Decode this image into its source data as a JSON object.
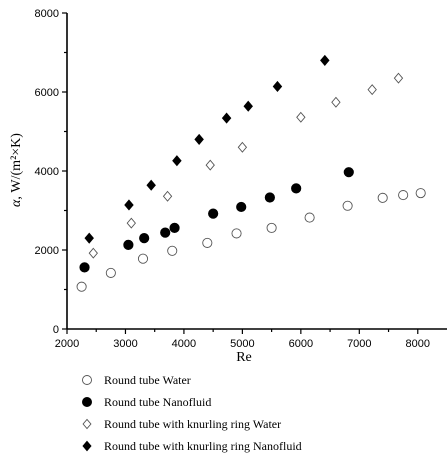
{
  "chart_data": {
    "type": "scatter",
    "xlabel": "Re",
    "ylabel_symbol": "α",
    "ylabel_unit": ", W/(m²×K)",
    "xlim": [
      2000,
      8500
    ],
    "ylim": [
      0,
      8000
    ],
    "xticks": [
      2000,
      3000,
      4000,
      5000,
      6000,
      7000,
      8000
    ],
    "yticks": [
      0,
      2000,
      4000,
      6000,
      8000
    ],
    "grid": false,
    "legend_position": "bottom",
    "series": [
      {
        "name": "Round tube Water",
        "marker": "circle-open",
        "color": "#555555",
        "x": [
          2250,
          2750,
          3300,
          3800,
          4400,
          4900,
          5500,
          6150,
          6800,
          7400,
          7750,
          8050
        ],
        "y": [
          1070,
          1420,
          1780,
          1980,
          2180,
          2420,
          2560,
          2820,
          3120,
          3320,
          3390,
          3440
        ]
      },
      {
        "name": "Round tube Nanofluid",
        "marker": "circle-filled",
        "color": "#000000",
        "x": [
          2300,
          3050,
          3320,
          3680,
          3840,
          4500,
          4980,
          5470,
          5920,
          6820
        ],
        "y": [
          1560,
          2130,
          2300,
          2440,
          2560,
          2920,
          3090,
          3330,
          3560,
          3970
        ]
      },
      {
        "name": "Round tube with knurling ring Water",
        "marker": "diamond-open",
        "color": "#555555",
        "x": [
          2450,
          3100,
          3720,
          4450,
          5000,
          6000,
          6600,
          7220,
          7670
        ],
        "y": [
          1920,
          2680,
          3360,
          4150,
          4600,
          5360,
          5740,
          6060,
          6350
        ]
      },
      {
        "name": "Round tube with knurling ring Nanofluid",
        "marker": "diamond-filled",
        "color": "#000000",
        "x": [
          2380,
          3060,
          3440,
          3880,
          4260,
          4730,
          5100,
          5600,
          6410
        ],
        "y": [
          2300,
          3140,
          3640,
          4260,
          4800,
          5340,
          5640,
          6140,
          6800
        ]
      }
    ]
  }
}
